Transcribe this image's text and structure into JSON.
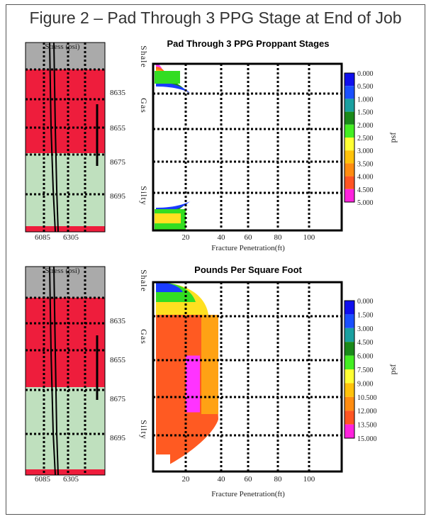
{
  "figure_title": "Figure 2 – Pad Through 3 PPG Stage at End of Job",
  "colors": {
    "shale": "#aaaaaa",
    "gas": "#ee1d3c",
    "silty": "#bfe0be",
    "grid": "#000000",
    "frac_outline": "#ff33ff"
  },
  "panels": [
    {
      "id": "top",
      "log": {
        "header": "Stress (psi)",
        "x_ticks": [
          "6085",
          "6305"
        ],
        "depth_labels": [
          "8635",
          "8655",
          "8675",
          "8695"
        ],
        "zones": [
          {
            "name": "Shale",
            "color": "shale"
          },
          {
            "name": "Gas",
            "color": "gas"
          },
          {
            "name": "Silty",
            "color": "silty"
          }
        ]
      },
      "chart_data": {
        "type": "heatmap",
        "title": "Pad Through 3 PPG Proppant Stages",
        "xlabel": "Fracture Penetration(ft)",
        "x_ticks": [
          20,
          40,
          60,
          80,
          100
        ],
        "xlim": [
          0,
          120
        ],
        "legend": {
          "unit": "psf",
          "placement": "right",
          "levels": [
            "0.000",
            "0.500",
            "1.000",
            "1.500",
            "2.000",
            "2.500",
            "3.000",
            "3.500",
            "4.000",
            "4.500",
            "5.000"
          ]
        }
      }
    },
    {
      "id": "bottom",
      "log": {
        "header": "Stress (psi)",
        "x_ticks": [
          "6085",
          "6305"
        ],
        "depth_labels": [
          "8635",
          "8655",
          "8675",
          "8695"
        ],
        "zones": [
          {
            "name": "Shale",
            "color": "shale"
          },
          {
            "name": "Gas",
            "color": "gas"
          },
          {
            "name": "Silty",
            "color": "silty"
          }
        ]
      },
      "chart_data": {
        "type": "heatmap",
        "title": "Pounds Per Square Foot",
        "xlabel": "Fracture Penetration(ft)",
        "x_ticks": [
          20,
          40,
          60,
          80,
          100
        ],
        "xlim": [
          0,
          120
        ],
        "legend": {
          "unit": "psf",
          "placement": "right",
          "levels": [
            "0.000",
            "1.500",
            "3.000",
            "4.500",
            "6.000",
            "7.500",
            "9.000",
            "10.500",
            "12.000",
            "13.500",
            "15.000"
          ]
        }
      }
    }
  ]
}
